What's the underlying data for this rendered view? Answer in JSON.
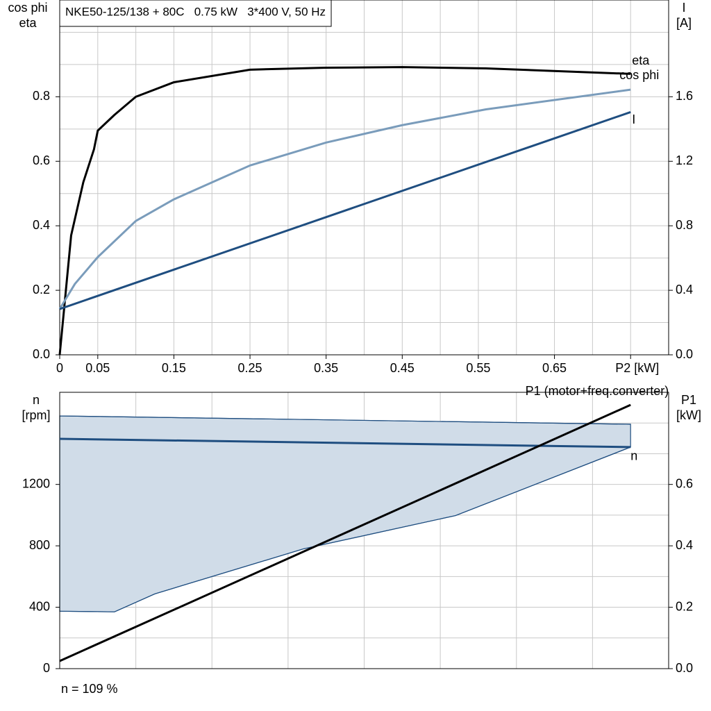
{
  "chart_data": [
    {
      "type": "line",
      "title": "NKE50-125/138 + 80C   0.75 kW   3*400 V, 50 Hz",
      "y_label": [
        "cos phi",
        "eta"
      ],
      "y2_label": [
        "I",
        "[A]"
      ],
      "xlim": [
        0,
        0.8
      ],
      "xticks": [
        0,
        0.05,
        0.15,
        0.25,
        0.35,
        0.45,
        0.55,
        0.65,
        {
          "value": 0.75,
          "label": "P2 [kW]"
        }
      ],
      "ylim": [
        0,
        1.1
      ],
      "yticks": [
        {
          "value": 0,
          "label": "0.0"
        },
        0.2,
        0.4,
        0.6,
        0.8
      ],
      "y2lim": [
        0,
        2.2
      ],
      "y2ticks": [
        {
          "value": 0,
          "label": "0.0"
        },
        0.4,
        0.8,
        1.2,
        1.6
      ],
      "grid_x": [
        0.05,
        0.1,
        0.15,
        0.2,
        0.25,
        0.3,
        0.35,
        0.4,
        0.45,
        0.5,
        0.55,
        0.6,
        0.65,
        0.7,
        0.75
      ],
      "grid_y": [
        0.1,
        0.2,
        0.3,
        0.4,
        0.5,
        0.6,
        0.7,
        0.8,
        0.9,
        1.0
      ],
      "series": [
        {
          "name": "eta",
          "color": "#000000",
          "x": [
            0,
            0.015,
            0.031,
            0.045,
            0.05,
            0.072,
            0.1,
            0.15,
            0.25,
            0.35,
            0.45,
            0.56,
            0.75
          ],
          "values": [
            0,
            0.37,
            0.535,
            0.637,
            0.695,
            0.744,
            0.8,
            0.845,
            0.884,
            0.89,
            0.892,
            0.888,
            0.871
          ]
        },
        {
          "name": "cos phi",
          "color": "#7a9cbb",
          "x": [
            0,
            0.02,
            0.05,
            0.1,
            0.15,
            0.25,
            0.35,
            0.45,
            0.56,
            0.75
          ],
          "values": [
            0.142,
            0.22,
            0.303,
            0.415,
            0.482,
            0.587,
            0.658,
            0.712,
            0.761,
            0.822
          ]
        },
        {
          "name": "I",
          "color": "#1f4e80",
          "axis": "y2",
          "x": [
            0,
            0.75
          ],
          "values": [
            0.284,
            1.505
          ]
        }
      ]
    },
    {
      "type": "line",
      "y_label": [
        "n",
        "[rpm]"
      ],
      "y2_label": [
        "P1",
        "[kW]"
      ],
      "xlim": [
        0,
        0.8
      ],
      "ylim": [
        0,
        1800
      ],
      "yticks": [
        0,
        400,
        800,
        1200
      ],
      "y2lim": [
        0,
        0.9
      ],
      "y2ticks": [
        {
          "value": 0,
          "label": "0.0"
        },
        0.2,
        0.4,
        0.6
      ],
      "grid_x": [
        0.1,
        0.2,
        0.3,
        0.4,
        0.5,
        0.6,
        0.7
      ],
      "grid_y": [
        200,
        400,
        600,
        800,
        1000,
        1200,
        1400,
        1600
      ],
      "area": {
        "color": "#d0dce8",
        "line_color": "#1f4e80",
        "x_upper": [
          0,
          0.75
        ],
        "upper": [
          1646,
          1592
        ],
        "x_lower": [
          0,
          0.072,
          0.125,
          0.32,
          0.52,
          0.75
        ],
        "lower": [
          374,
          370,
          487,
          780,
          997,
          1443
        ]
      },
      "series": [
        {
          "name": "n",
          "color": "#1f4e80",
          "x": [
            0,
            0.75
          ],
          "values": [
            1497,
            1443
          ]
        },
        {
          "name": "P1 (motor+freq.converter)",
          "color": "#000000",
          "axis": "y2",
          "x": [
            0,
            0.75
          ],
          "values": [
            0.025,
            0.859
          ]
        }
      ],
      "footnote": "n = 109 %"
    }
  ]
}
